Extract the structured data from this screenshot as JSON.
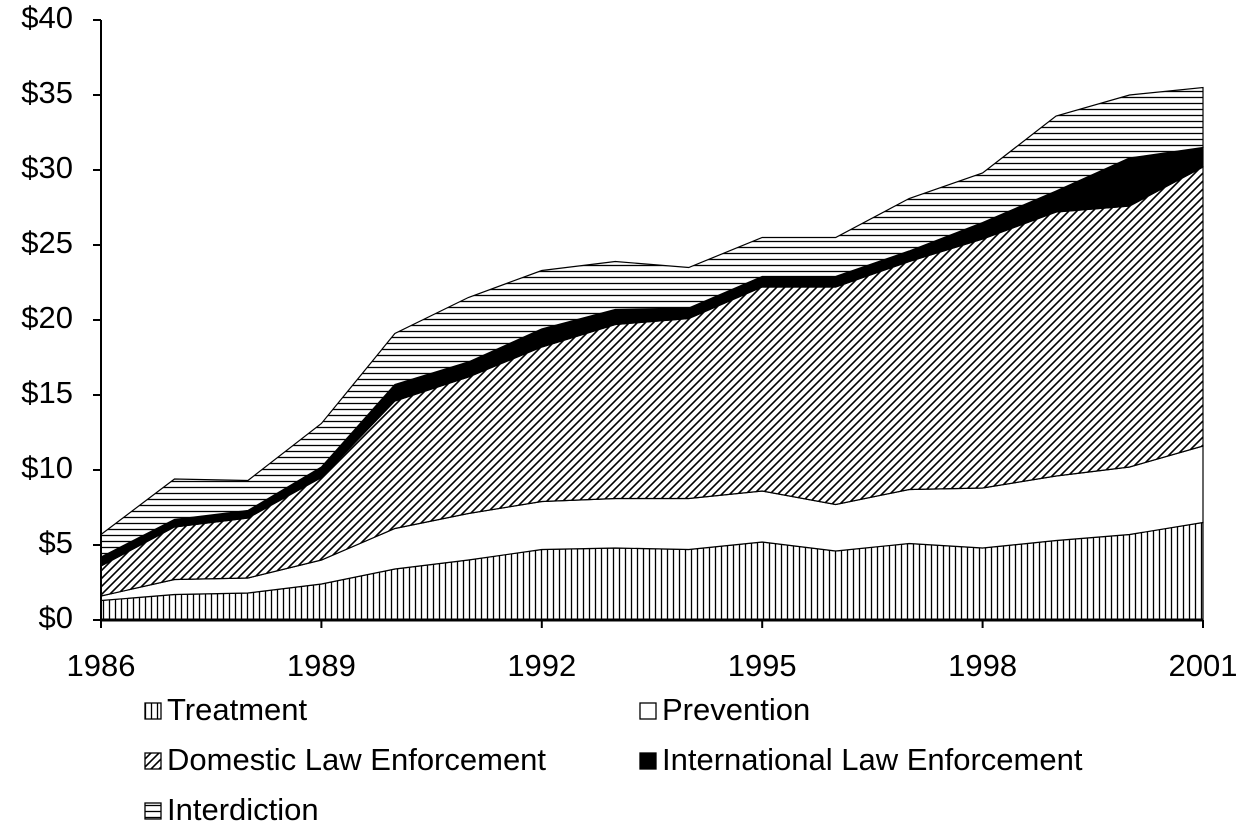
{
  "chart_data": {
    "type": "stacked_area",
    "x": [
      1986,
      1987,
      1988,
      1989,
      1990,
      1991,
      1992,
      1993,
      1994,
      1995,
      1996,
      1997,
      1998,
      1999,
      2000,
      2001
    ],
    "series": [
      {
        "name": "Treatment",
        "color": "#000000",
        "pattern": "vertical",
        "values": [
          1.3,
          1.7,
          1.8,
          2.4,
          3.4,
          4.0,
          4.7,
          4.8,
          4.7,
          5.2,
          4.6,
          5.1,
          4.8,
          5.3,
          5.7,
          6.5
        ]
      },
      {
        "name": "Prevention",
        "color": "#000000",
        "pattern": "none",
        "values": [
          0.3,
          1.0,
          1.0,
          1.6,
          2.7,
          3.1,
          3.2,
          3.3,
          3.4,
          3.4,
          3.1,
          3.6,
          4.0,
          4.3,
          4.5,
          5.1
        ]
      },
      {
        "name": "Domestic Law Enforcement",
        "color": "#000000",
        "pattern": "diagonal",
        "values": [
          2.0,
          3.5,
          4.0,
          5.5,
          8.5,
          9.1,
          10.3,
          11.6,
          12.0,
          13.6,
          14.5,
          15.2,
          16.6,
          17.6,
          17.4,
          18.6
        ]
      },
      {
        "name": "International Law Enforcement",
        "color": "#000000",
        "pattern": "solid",
        "values": [
          0.6,
          0.5,
          0.5,
          0.7,
          1.1,
          1.0,
          1.2,
          1.0,
          0.7,
          0.7,
          0.7,
          0.7,
          1.1,
          1.4,
          3.2,
          1.3
        ]
      },
      {
        "name": "Interdiction",
        "color": "#000000",
        "pattern": "horizontal",
        "values": [
          1.5,
          2.7,
          2.0,
          2.9,
          3.4,
          4.3,
          3.9,
          3.2,
          2.7,
          2.6,
          2.6,
          3.5,
          3.3,
          5.0,
          4.2,
          4.0
        ]
      }
    ],
    "xlim": [
      1986,
      2001
    ],
    "xticks": [
      1986,
      1989,
      1992,
      1995,
      1998,
      2001
    ],
    "ylim": [
      0,
      40
    ],
    "yticks": [
      {
        "value": 0,
        "label": "$0"
      },
      {
        "value": 5,
        "label": "$5"
      },
      {
        "value": 10,
        "label": "$10"
      },
      {
        "value": 15,
        "label": "$15"
      },
      {
        "value": 20,
        "label": "$20"
      },
      {
        "value": 25,
        "label": "$25"
      },
      {
        "value": 30,
        "label": "$30"
      },
      {
        "value": 35,
        "label": "$35"
      },
      {
        "value": 40,
        "label": "$40"
      }
    ],
    "legend": "bottom"
  }
}
